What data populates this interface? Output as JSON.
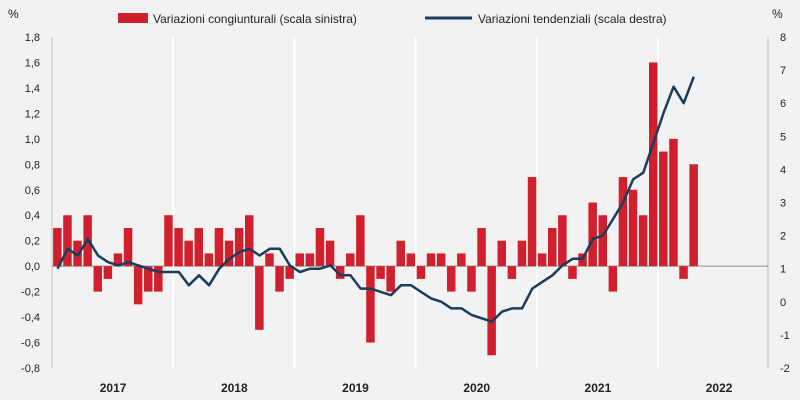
{
  "chart_data": {
    "type": "bar+line",
    "legend": {
      "position": "top",
      "bars_label": "Variazioni congiunturali (scala sinistra)",
      "line_label": "Variazioni tendenziali (scala destra)"
    },
    "y_left": {
      "unit": "%",
      "min": -0.8,
      "max": 1.8,
      "ticks": [
        "-0,8",
        "-0,6",
        "-0,4",
        "-0,2",
        "0,0",
        "0,2",
        "0,4",
        "0,6",
        "0,8",
        "1,0",
        "1,2",
        "1,4",
        "1,6",
        "1,8"
      ]
    },
    "y_right": {
      "unit": "%",
      "min": -2,
      "max": 8,
      "ticks": [
        "-2",
        "-1",
        "0",
        "1",
        "2",
        "3",
        "4",
        "5",
        "6",
        "7",
        "8"
      ]
    },
    "years": [
      "2017",
      "2018",
      "2019",
      "2020",
      "2021",
      "2022"
    ],
    "months_per_year": 12,
    "gridlines": "none (vertical separators between years)",
    "series": [
      {
        "name": "Variazioni congiunturali (scala sinistra)",
        "type": "bar",
        "axis": "left",
        "color": "#d0202e",
        "values": [
          0.3,
          0.4,
          0.2,
          0.4,
          -0.2,
          -0.1,
          0.1,
          0.3,
          -0.3,
          -0.2,
          -0.2,
          0.4,
          0.3,
          0.2,
          0.3,
          0.1,
          0.3,
          0.2,
          0.3,
          0.4,
          -0.5,
          0.1,
          -0.2,
          -0.1,
          0.1,
          0.1,
          0.3,
          0.2,
          -0.1,
          0.1,
          0.4,
          -0.6,
          -0.1,
          -0.2,
          0.2,
          0.1,
          -0.1,
          0.1,
          0.1,
          -0.2,
          0.1,
          -0.2,
          0.3,
          -0.7,
          0.2,
          -0.1,
          0.2,
          0.7,
          0.1,
          0.3,
          0.4,
          -0.1,
          0.1,
          0.5,
          0.4,
          -0.2,
          0.7,
          0.6,
          0.4,
          1.6,
          0.9,
          1.0,
          -0.1,
          0.8
        ]
      },
      {
        "name": "Variazioni tendenziali (scala destra)",
        "type": "line",
        "axis": "right",
        "color": "#1a3d5c",
        "values": [
          1.0,
          1.6,
          1.4,
          1.9,
          1.4,
          1.2,
          1.1,
          1.2,
          1.1,
          1.0,
          0.9,
          0.9,
          0.9,
          0.5,
          0.8,
          0.5,
          1.0,
          1.3,
          1.5,
          1.6,
          1.4,
          1.6,
          1.6,
          1.1,
          0.9,
          1.0,
          1.0,
          1.1,
          0.8,
          0.8,
          0.4,
          0.4,
          0.3,
          0.2,
          0.5,
          0.5,
          0.3,
          0.1,
          0.0,
          -0.2,
          -0.2,
          -0.4,
          -0.5,
          -0.6,
          -0.3,
          -0.2,
          -0.2,
          0.4,
          0.6,
          0.8,
          1.1,
          1.3,
          1.3,
          1.9,
          2.0,
          2.5,
          3.0,
          3.7,
          3.9,
          4.8,
          5.7,
          6.5,
          6.0,
          6.8
        ]
      }
    ]
  }
}
